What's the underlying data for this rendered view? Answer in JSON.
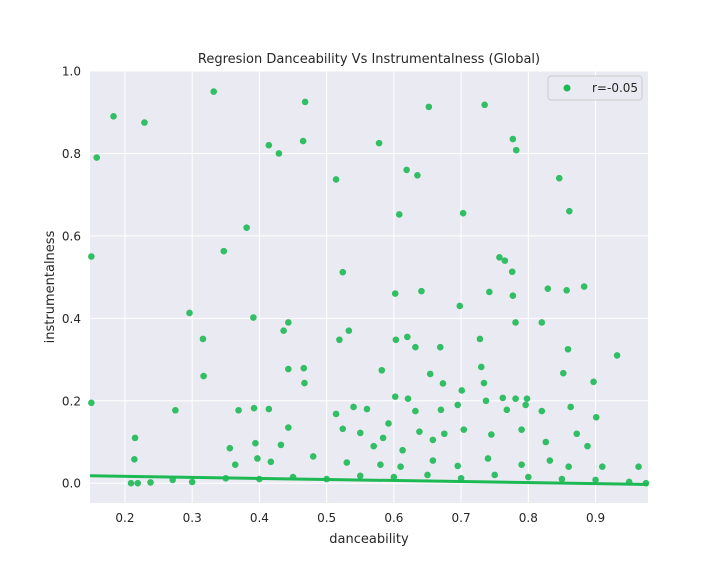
{
  "chart_data": {
    "type": "scatter",
    "title": "Regresion Danceability Vs Instrumentalness (Global)",
    "xlabel": "danceability",
    "ylabel": "instrumentalness",
    "xlim": [
      0.148,
      0.978
    ],
    "ylim": [
      -0.048,
      1.0
    ],
    "xticks": [
      "0.2",
      "0.3",
      "0.4",
      "0.5",
      "0.6",
      "0.7",
      "0.8",
      "0.9"
    ],
    "yticks": [
      "0.0",
      "0.2",
      "0.4",
      "0.6",
      "0.8",
      "1.0"
    ],
    "grid": true,
    "legend_placement": "top-right",
    "background": "#eaeaf2",
    "point_color": "#1db954",
    "series": [
      {
        "name": "r=-0.05",
        "points": [
          [
            0.15,
            0.55
          ],
          [
            0.15,
            0.195
          ],
          [
            0.158,
            0.79
          ],
          [
            0.183,
            0.89
          ],
          [
            0.229,
            0.875
          ],
          [
            0.332,
            0.95
          ],
          [
            0.468,
            0.925
          ],
          [
            0.652,
            0.913
          ],
          [
            0.735,
            0.918
          ],
          [
            0.414,
            0.82
          ],
          [
            0.429,
            0.8
          ],
          [
            0.465,
            0.83
          ],
          [
            0.578,
            0.825
          ],
          [
            0.777,
            0.835
          ],
          [
            0.782,
            0.808
          ],
          [
            0.514,
            0.737
          ],
          [
            0.619,
            0.76
          ],
          [
            0.635,
            0.747
          ],
          [
            0.846,
            0.74
          ],
          [
            0.608,
            0.652
          ],
          [
            0.703,
            0.655
          ],
          [
            0.861,
            0.66
          ],
          [
            0.381,
            0.62
          ],
          [
            0.347,
            0.563
          ],
          [
            0.524,
            0.512
          ],
          [
            0.757,
            0.548
          ],
          [
            0.765,
            0.54
          ],
          [
            0.776,
            0.513
          ],
          [
            0.602,
            0.46
          ],
          [
            0.641,
            0.466
          ],
          [
            0.742,
            0.464
          ],
          [
            0.777,
            0.455
          ],
          [
            0.829,
            0.472
          ],
          [
            0.857,
            0.468
          ],
          [
            0.883,
            0.477
          ],
          [
            0.296,
            0.413
          ],
          [
            0.391,
            0.402
          ],
          [
            0.443,
            0.39
          ],
          [
            0.698,
            0.43
          ],
          [
            0.436,
            0.37
          ],
          [
            0.533,
            0.37
          ],
          [
            0.781,
            0.39
          ],
          [
            0.82,
            0.39
          ],
          [
            0.316,
            0.35
          ],
          [
            0.519,
            0.348
          ],
          [
            0.603,
            0.348
          ],
          [
            0.62,
            0.355
          ],
          [
            0.632,
            0.33
          ],
          [
            0.669,
            0.33
          ],
          [
            0.728,
            0.35
          ],
          [
            0.859,
            0.325
          ],
          [
            0.932,
            0.31
          ],
          [
            0.317,
            0.26
          ],
          [
            0.443,
            0.277
          ],
          [
            0.466,
            0.279
          ],
          [
            0.467,
            0.243
          ],
          [
            0.582,
            0.274
          ],
          [
            0.654,
            0.265
          ],
          [
            0.673,
            0.242
          ],
          [
            0.73,
            0.282
          ],
          [
            0.734,
            0.243
          ],
          [
            0.852,
            0.267
          ],
          [
            0.897,
            0.246
          ],
          [
            0.602,
            0.21
          ],
          [
            0.621,
            0.205
          ],
          [
            0.701,
            0.225
          ],
          [
            0.762,
            0.207
          ],
          [
            0.781,
            0.205
          ],
          [
            0.798,
            0.205
          ],
          [
            0.275,
            0.177
          ],
          [
            0.369,
            0.177
          ],
          [
            0.392,
            0.182
          ],
          [
            0.414,
            0.18
          ],
          [
            0.514,
            0.168
          ],
          [
            0.54,
            0.185
          ],
          [
            0.56,
            0.18
          ],
          [
            0.592,
            0.145
          ],
          [
            0.632,
            0.175
          ],
          [
            0.67,
            0.178
          ],
          [
            0.695,
            0.19
          ],
          [
            0.737,
            0.2
          ],
          [
            0.768,
            0.178
          ],
          [
            0.796,
            0.19
          ],
          [
            0.82,
            0.175
          ],
          [
            0.863,
            0.185
          ],
          [
            0.901,
            0.16
          ],
          [
            0.215,
            0.11
          ],
          [
            0.214,
            0.058
          ],
          [
            0.356,
            0.085
          ],
          [
            0.394,
            0.097
          ],
          [
            0.432,
            0.093
          ],
          [
            0.443,
            0.135
          ],
          [
            0.524,
            0.132
          ],
          [
            0.55,
            0.122
          ],
          [
            0.57,
            0.09
          ],
          [
            0.584,
            0.11
          ],
          [
            0.613,
            0.08
          ],
          [
            0.638,
            0.125
          ],
          [
            0.658,
            0.105
          ],
          [
            0.675,
            0.12
          ],
          [
            0.704,
            0.13
          ],
          [
            0.745,
            0.118
          ],
          [
            0.79,
            0.13
          ],
          [
            0.826,
            0.1
          ],
          [
            0.872,
            0.12
          ],
          [
            0.888,
            0.09
          ],
          [
            0.364,
            0.045
          ],
          [
            0.397,
            0.06
          ],
          [
            0.417,
            0.052
          ],
          [
            0.48,
            0.065
          ],
          [
            0.53,
            0.05
          ],
          [
            0.58,
            0.045
          ],
          [
            0.61,
            0.04
          ],
          [
            0.658,
            0.055
          ],
          [
            0.695,
            0.042
          ],
          [
            0.74,
            0.06
          ],
          [
            0.79,
            0.045
          ],
          [
            0.832,
            0.055
          ],
          [
            0.86,
            0.04
          ],
          [
            0.91,
            0.04
          ],
          [
            0.964,
            0.04
          ],
          [
            0.209,
            0.0
          ],
          [
            0.219,
            0.0
          ],
          [
            0.238,
            0.002
          ],
          [
            0.271,
            0.008
          ],
          [
            0.3,
            0.003
          ],
          [
            0.35,
            0.012
          ],
          [
            0.4,
            0.01
          ],
          [
            0.45,
            0.015
          ],
          [
            0.5,
            0.01
          ],
          [
            0.55,
            0.018
          ],
          [
            0.6,
            0.015
          ],
          [
            0.65,
            0.02
          ],
          [
            0.7,
            0.012
          ],
          [
            0.75,
            0.02
          ],
          [
            0.8,
            0.015
          ],
          [
            0.85,
            0.01
          ],
          [
            0.9,
            0.008
          ],
          [
            0.95,
            0.003
          ],
          [
            0.975,
            0.0
          ]
        ]
      }
    ],
    "regression": {
      "r": -0.05,
      "x": [
        0.148,
        0.978
      ],
      "y": [
        0.018,
        -0.003
      ]
    }
  }
}
